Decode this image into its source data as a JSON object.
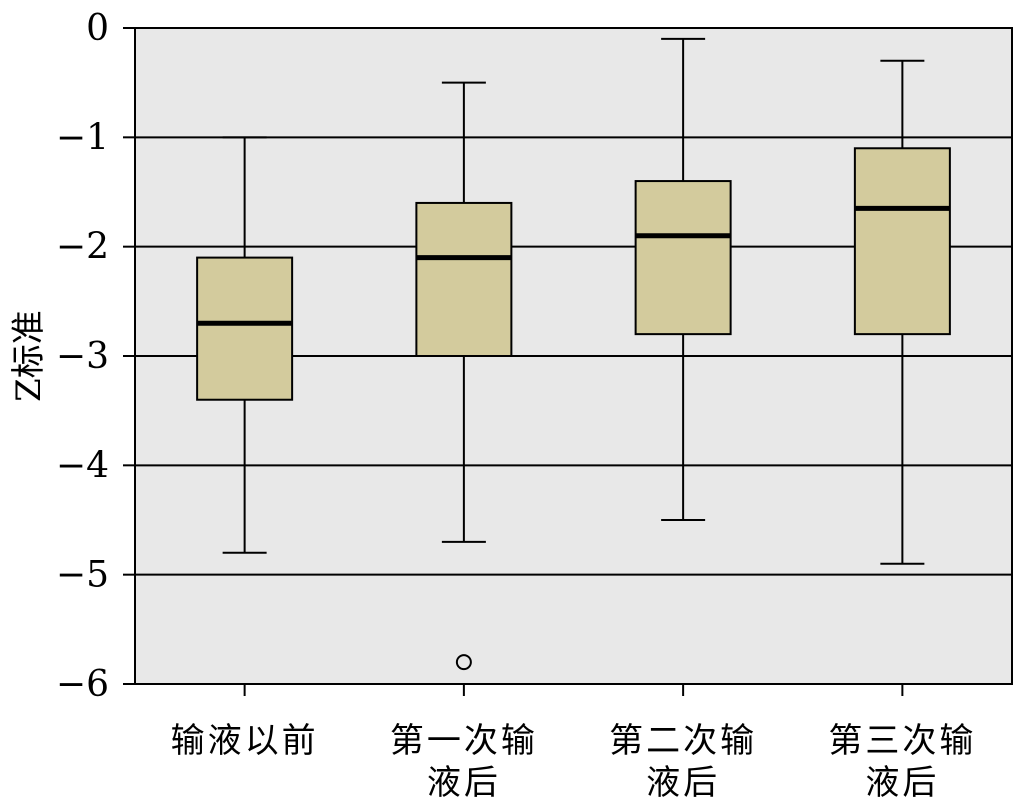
{
  "chart_data": {
    "type": "box",
    "ylabel": "Z标准",
    "xlabel": "",
    "ylim": [
      -6,
      0
    ],
    "yticks": [
      0,
      -1,
      -2,
      -3,
      -4,
      -5,
      -6
    ],
    "ytick_labels": [
      "0",
      "−1",
      "−2",
      "−3",
      "−4",
      "−5",
      "−6"
    ],
    "grid": true,
    "box_color": "#d3cb9d",
    "plot_bg": "#e8e8e8",
    "categories": [
      {
        "lines": [
          "输液以前"
        ]
      },
      {
        "lines": [
          "第一次输",
          "液后"
        ]
      },
      {
        "lines": [
          "第二次输",
          "液后"
        ]
      },
      {
        "lines": [
          "第三次输",
          "液后"
        ]
      }
    ],
    "boxes": [
      {
        "whisker_low": -4.8,
        "q1": -3.4,
        "median": -2.7,
        "q3": -2.1,
        "whisker_high": -1.0,
        "outliers": []
      },
      {
        "whisker_low": -4.7,
        "q1": -3.0,
        "median": -2.1,
        "q3": -1.6,
        "whisker_high": -0.5,
        "outliers": [
          -5.8
        ]
      },
      {
        "whisker_low": -4.5,
        "q1": -2.8,
        "median": -1.9,
        "q3": -1.4,
        "whisker_high": -0.1,
        "outliers": []
      },
      {
        "whisker_low": -4.9,
        "q1": -2.8,
        "median": -1.65,
        "q3": -1.1,
        "whisker_high": -0.3,
        "outliers": []
      }
    ]
  }
}
